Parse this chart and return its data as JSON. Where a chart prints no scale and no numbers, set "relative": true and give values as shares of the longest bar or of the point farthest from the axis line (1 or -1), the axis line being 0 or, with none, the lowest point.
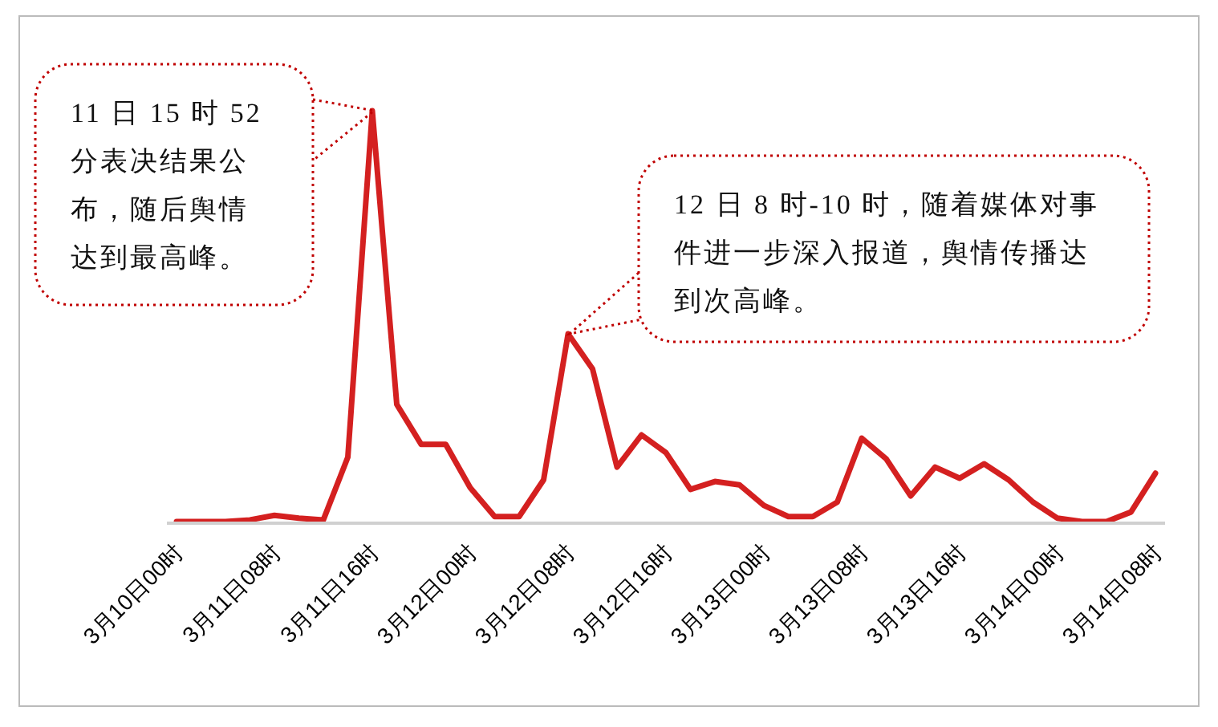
{
  "chart_data": {
    "type": "line",
    "relative": true,
    "categories": [
      "3月10日00时",
      null,
      null,
      null,
      "3月11日08时",
      null,
      null,
      null,
      "3月11日16时",
      null,
      null,
      null,
      "3月12日00时",
      null,
      null,
      null,
      "3月12日08时",
      null,
      null,
      null,
      "3月12日16时",
      null,
      null,
      null,
      "3月13日00时",
      null,
      null,
      null,
      "3月13日08时",
      null,
      null,
      null,
      "3月13日16时",
      null,
      null,
      null,
      "3月14日00时",
      null,
      null,
      null,
      "3月14日08时"
    ],
    "series": [
      {
        "color": "#d42020",
        "values": [
          0.004,
          0.004,
          0.004,
          0.008,
          0.019,
          0.012,
          0.008,
          0.16,
          1,
          0.288,
          0.191,
          0.191,
          0.086,
          0.016,
          0.016,
          0.105,
          0.459,
          0.374,
          0.136,
          0.214,
          0.171,
          0.082,
          0.101,
          0.093,
          0.043,
          0.016,
          0.016,
          0.051,
          0.206,
          0.156,
          0.066,
          0.136,
          0.109,
          0.144,
          0.105,
          0.051,
          0.012,
          0.004,
          0.004,
          0.027,
          0.121
        ]
      }
    ],
    "annotations": [
      "11 日 15 时 52 分表决结果公布，随后舆情达到最高峰。",
      "12 日 8 时-10 时，随着媒体对事件进一步深入报道，舆情传播达到次高峰。"
    ],
    "marker": "none",
    "line_style": "solid"
  }
}
